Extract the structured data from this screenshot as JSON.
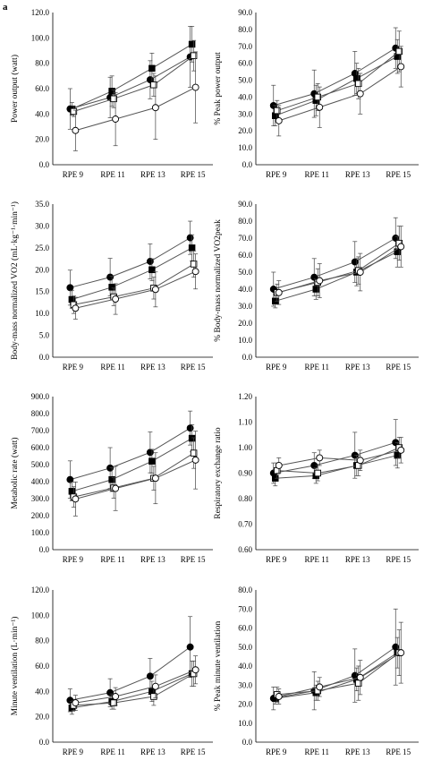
{
  "figure_label": "a",
  "marker_colors": {
    "filled": "#000000",
    "open": "#ffffff",
    "line": "#555555"
  },
  "chart_data": [
    {
      "type": "line",
      "ylabel": "Power output (watt)",
      "categories": [
        "RPE 9",
        "RPE 11",
        "RPE 13",
        "RPE 15"
      ],
      "ylim": [
        0,
        120
      ],
      "ystep": 20,
      "ydecimals": 1,
      "series": [
        {
          "marker": "circle-filled",
          "values": [
            44,
            53,
            67,
            85
          ],
          "err": [
            16,
            16,
            15,
            24
          ]
        },
        {
          "marker": "square-filled",
          "values": [
            44,
            58,
            76,
            95
          ],
          "err": [
            5,
            12,
            12,
            14
          ]
        },
        {
          "marker": "square-open",
          "values": [
            42,
            52,
            63,
            86
          ],
          "err": [
            4,
            7,
            9,
            12
          ]
        },
        {
          "marker": "circle-open",
          "values": [
            27,
            36,
            45,
            61
          ],
          "err": [
            16,
            21,
            25,
            28
          ]
        }
      ]
    },
    {
      "type": "line",
      "ylabel": "% Peak power output",
      "categories": [
        "RPE 9",
        "RPE 11",
        "RPE 13",
        "RPE 15"
      ],
      "ylim": [
        0,
        90
      ],
      "ystep": 10,
      "ydecimals": 1,
      "series": [
        {
          "marker": "circle-filled",
          "values": [
            35,
            42,
            54,
            69
          ],
          "err": [
            12,
            14,
            13,
            12
          ]
        },
        {
          "marker": "square-filled",
          "values": [
            29,
            38,
            51,
            64
          ],
          "err": [
            6,
            9,
            9,
            10
          ]
        },
        {
          "marker": "square-open",
          "values": [
            32,
            40,
            48,
            67
          ],
          "err": [
            6,
            8,
            9,
            12
          ]
        },
        {
          "marker": "circle-open",
          "values": [
            26,
            34,
            42,
            58
          ],
          "err": [
            9,
            12,
            12,
            12
          ]
        }
      ]
    },
    {
      "type": "line",
      "ylabel": "Body-mass normalized VO2 (mL·kg⁻¹·min⁻¹)",
      "categories": [
        "RPE 9",
        "RPE 11",
        "RPE 13",
        "RPE 15"
      ],
      "ylim": [
        0,
        35
      ],
      "ystep": 5,
      "ydecimals": 1,
      "series": [
        {
          "marker": "circle-filled",
          "values": [
            15.9,
            18.3,
            21.9,
            27.3
          ],
          "err": [
            4,
            4.3,
            4,
            3.8
          ]
        },
        {
          "marker": "square-filled",
          "values": [
            13.2,
            16.0,
            20.0,
            25.0
          ],
          "err": [
            2,
            2.5,
            2.5,
            3
          ]
        },
        {
          "marker": "square-open",
          "values": [
            12.0,
            13.8,
            15.8,
            21.3
          ],
          "err": [
            2,
            2,
            2.5,
            3
          ]
        },
        {
          "marker": "circle-open",
          "values": [
            11.2,
            13.3,
            15.5,
            19.6
          ],
          "err": [
            2.5,
            3.5,
            4,
            4
          ]
        }
      ]
    },
    {
      "type": "line",
      "ylabel": "% Body-mass normalized VO2peak",
      "categories": [
        "RPE 9",
        "RPE 11",
        "RPE 13",
        "RPE 15"
      ],
      "ylim": [
        0,
        90
      ],
      "ystep": 10,
      "ydecimals": 1,
      "series": [
        {
          "marker": "circle-filled",
          "values": [
            40,
            47,
            56,
            70
          ],
          "err": [
            10,
            11,
            12,
            12
          ]
        },
        {
          "marker": "square-filled",
          "values": [
            33,
            40,
            50,
            62
          ],
          "err": [
            4,
            6,
            8,
            9
          ]
        },
        {
          "marker": "square-open",
          "values": [
            38,
            44,
            51,
            67
          ],
          "err": [
            5,
            8,
            8,
            10
          ]
        },
        {
          "marker": "circle-open",
          "values": [
            38,
            45,
            50,
            65
          ],
          "err": [
            7,
            10,
            11,
            12
          ]
        }
      ]
    },
    {
      "type": "line",
      "ylabel": "Metabolic rate (watt)",
      "categories": [
        "RPE 9",
        "RPE 11",
        "RPE 13",
        "RPE 15"
      ],
      "ylim": [
        0,
        900
      ],
      "ystep": 100,
      "ydecimals": 1,
      "series": [
        {
          "marker": "circle-filled",
          "values": [
            412,
            480,
            572,
            715
          ],
          "err": [
            110,
            120,
            120,
            100
          ]
        },
        {
          "marker": "square-filled",
          "values": [
            343,
            412,
            520,
            655
          ],
          "err": [
            55,
            70,
            70,
            80
          ]
        },
        {
          "marker": "square-open",
          "values": [
            310,
            363,
            420,
            568
          ],
          "err": [
            60,
            60,
            70,
            90
          ]
        },
        {
          "marker": "circle-open",
          "values": [
            298,
            360,
            420,
            527
          ],
          "err": [
            100,
            130,
            150,
            170
          ]
        }
      ]
    },
    {
      "type": "line",
      "ylabel": "Respiratory exchange ratio",
      "categories": [
        "RPE 9",
        "RPE 11",
        "RPE 13",
        "RPE 15"
      ],
      "ylim": [
        0.6,
        1.2
      ],
      "ystep": 0.1,
      "ydecimals": 2,
      "series": [
        {
          "marker": "circle-filled",
          "values": [
            0.9,
            0.93,
            0.97,
            1.02
          ],
          "err": [
            0.04,
            0.05,
            0.09,
            0.09
          ]
        },
        {
          "marker": "square-filled",
          "values": [
            0.88,
            0.89,
            0.93,
            0.97
          ],
          "err": [
            0.03,
            0.03,
            0.04,
            0.05
          ]
        },
        {
          "marker": "square-open",
          "values": [
            0.91,
            0.9,
            0.93,
            1.0
          ],
          "err": [
            0.03,
            0.03,
            0.04,
            0.04
          ]
        },
        {
          "marker": "circle-open",
          "values": [
            0.93,
            0.96,
            0.95,
            0.99
          ],
          "err": [
            0.03,
            0.03,
            0.04,
            0.05
          ]
        }
      ]
    },
    {
      "type": "line",
      "ylabel": "Minute ventilation (L·min⁻¹)",
      "categories": [
        "RPE 9",
        "RPE 11",
        "RPE 13",
        "RPE 15"
      ],
      "ylim": [
        0,
        120
      ],
      "ystep": 20,
      "ydecimals": 1,
      "series": [
        {
          "marker": "circle-filled",
          "values": [
            33,
            39,
            52,
            75
          ],
          "err": [
            9,
            11,
            14,
            24
          ]
        },
        {
          "marker": "square-filled",
          "values": [
            27,
            32,
            40,
            54
          ],
          "err": [
            5,
            6,
            8,
            10
          ]
        },
        {
          "marker": "square-open",
          "values": [
            29,
            31,
            36,
            54
          ],
          "err": [
            4,
            5,
            7,
            10
          ]
        },
        {
          "marker": "circle-open",
          "values": [
            31,
            36,
            44,
            57
          ],
          "err": [
            6,
            7,
            9,
            11
          ]
        }
      ]
    },
    {
      "type": "line",
      "ylabel": "% Peak minute ventilation",
      "categories": [
        "RPE 9",
        "RPE 11",
        "RPE 13",
        "RPE 15"
      ],
      "ylim": [
        0,
        80
      ],
      "ystep": 10,
      "ydecimals": 1,
      "series": [
        {
          "marker": "circle-filled",
          "values": [
            23,
            27,
            35,
            50
          ],
          "err": [
            6,
            10,
            14,
            20
          ]
        },
        {
          "marker": "square-filled",
          "values": [
            23,
            26,
            33,
            47
          ],
          "err": [
            3,
            4,
            6,
            8
          ]
        },
        {
          "marker": "square-open",
          "values": [
            25,
            27,
            31,
            47
          ],
          "err": [
            4,
            5,
            9,
            12
          ]
        },
        {
          "marker": "circle-open",
          "values": [
            24,
            29,
            34,
            47
          ],
          "err": [
            4,
            5,
            9,
            16
          ]
        }
      ]
    }
  ]
}
